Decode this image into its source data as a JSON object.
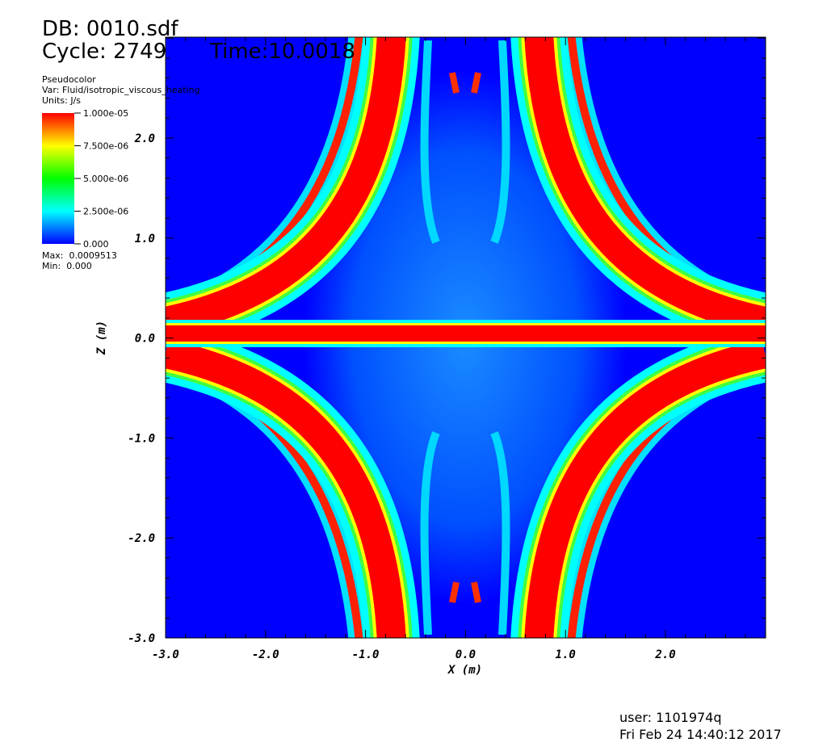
{
  "header": {
    "database": "DB: 0010.sdf",
    "cycle": "Cycle: 2749",
    "time": "Time:10.0018"
  },
  "legend": {
    "plot_type": "Pseudocolor",
    "variable": "Var: Fluid/isotropic_viscous_heating",
    "units": "Units: J/s",
    "ticks": [
      "1.000e-05",
      "7.500e-06",
      "5.000e-06",
      "2.500e-06",
      "0.000"
    ],
    "max": "Max:  0.0009513",
    "min": "Min:  0.000"
  },
  "axes": {
    "x_label": "X (m)",
    "y_label": "Z (m)",
    "x_ticks": [
      "-3.0",
      "-2.0",
      "-1.0",
      "0.0",
      "1.0",
      "2.0"
    ],
    "y_ticks": [
      "-3.0",
      "-2.0",
      "-1.0",
      "0.0",
      "1.0",
      "2.0"
    ]
  },
  "footer": {
    "user": "user: 1101974q",
    "date": "Fri Feb 24 14:40:12 2017"
  }
}
